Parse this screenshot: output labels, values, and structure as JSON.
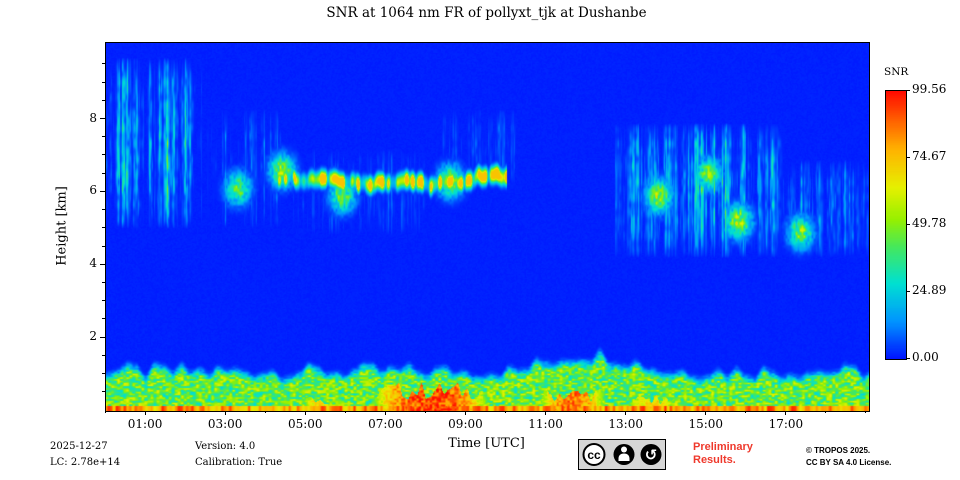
{
  "title": "SNR at 1064 nm FR of pollyxt_tjk at Dushanbe",
  "axes": {
    "xlabel": "Time [UTC]",
    "ylabel": "Height [km]",
    "xticks": [
      {
        "hour": 1,
        "label": "01:00"
      },
      {
        "hour": 3,
        "label": "03:00"
      },
      {
        "hour": 5,
        "label": "05:00"
      },
      {
        "hour": 7,
        "label": "07:00"
      },
      {
        "hour": 9,
        "label": "09:00"
      },
      {
        "hour": 11,
        "label": "11:00"
      },
      {
        "hour": 13,
        "label": "13:00"
      },
      {
        "hour": 15,
        "label": "15:00"
      },
      {
        "hour": 17,
        "label": "17:00"
      }
    ],
    "yticks": [
      {
        "km": 2,
        "label": "2"
      },
      {
        "km": 4,
        "label": "4"
      },
      {
        "km": 6,
        "label": "6"
      },
      {
        "km": 8,
        "label": "8"
      }
    ]
  },
  "colorbar": {
    "title": "SNR",
    "ticks": [
      {
        "value": 99.56,
        "label": "99.56"
      },
      {
        "value": 74.67,
        "label": "74.67"
      },
      {
        "value": 49.78,
        "label": "49.78"
      },
      {
        "value": 24.89,
        "label": "24.89"
      },
      {
        "value": 0,
        "label": "0.00"
      }
    ]
  },
  "footer": {
    "date": "2025-12-27",
    "lc": "LC: 2.78e+14",
    "version": "Version: 4.0",
    "calibration": "Calibration: True",
    "preliminary": "Preliminary Results.",
    "copyright1": "© TROPOS 2025.",
    "copyright2": "CC BY SA 4.0 License.",
    "badge_cc": "cc",
    "badge_sa_glyph": "↺"
  },
  "colors": {
    "preliminary_red": "#ef392c",
    "background_blue": "#0014ff",
    "frame_black": "#000000"
  },
  "chart_data": {
    "type": "heatmap",
    "title": "SNR at 1064 nm FR of pollyxt_tjk at Dushanbe",
    "xlabel": "Time [UTC]",
    "ylabel": "Height [km]",
    "x_hours": 19.05,
    "xlim": [
      "00:00",
      "19:03"
    ],
    "ylim": [
      0,
      10.1
    ],
    "vmin": 0,
    "vmax": 99.56,
    "colorbar_label": "SNR",
    "legend_position": "right",
    "grid": false,
    "colormap_stops": [
      [
        0.0,
        "#0014ff"
      ],
      [
        0.14,
        "#0096ff"
      ],
      [
        0.28,
        "#00e0d2"
      ],
      [
        0.42,
        "#46e85a"
      ],
      [
        0.52,
        "#96f000"
      ],
      [
        0.64,
        "#e6f000"
      ],
      [
        0.78,
        "#ffb400"
      ],
      [
        0.9,
        "#ff5a00"
      ],
      [
        1.0,
        "#ff0a00"
      ]
    ],
    "features": {
      "background_value": 1.6,
      "surface_layer": {
        "top_km": 0.85,
        "base_value": 50,
        "bottom_line_value": 82,
        "hot_spots": [
          {
            "t0": 4.9,
            "t1": 5.7,
            "h_top": 0.3,
            "value": 70
          },
          {
            "t0": 6.6,
            "t1": 9.6,
            "h_top": 0.55,
            "value": 96
          },
          {
            "t0": 10.8,
            "t1": 12.5,
            "h_top": 0.45,
            "value": 88
          },
          {
            "t0": 13.0,
            "t1": 14.3,
            "h_top": 0.3,
            "value": 72
          }
        ]
      },
      "cloud_regions": [
        {
          "t0": 0.0,
          "t1": 2.4,
          "h0": 5.0,
          "h1": 9.7,
          "density": 0.9,
          "value": 34
        },
        {
          "t0": 2.3,
          "t1": 4.5,
          "h0": 5.0,
          "h1": 8.3,
          "density": 0.55,
          "value": 30
        },
        {
          "t0": 4.5,
          "t1": 8.0,
          "h0": 4.8,
          "h1": 7.2,
          "density": 0.35,
          "value": 24
        },
        {
          "t0": 8.2,
          "t1": 10.3,
          "h0": 6.2,
          "h1": 8.3,
          "density": 0.4,
          "value": 22
        },
        {
          "t0": 12.7,
          "t1": 16.9,
          "h0": 4.2,
          "h1": 7.9,
          "density": 0.75,
          "value": 32
        },
        {
          "t0": 16.9,
          "t1": 19.05,
          "h0": 4.2,
          "h1": 6.9,
          "density": 0.6,
          "value": 27
        }
      ],
      "bright_layer": {
        "t0": 4.3,
        "t1": 10.0,
        "h_center": 6.35,
        "thickness": 0.2,
        "value": 62
      },
      "bright_spots": [
        {
          "t": 3.3,
          "h": 6.1,
          "value": 45
        },
        {
          "t": 4.4,
          "h": 6.6,
          "value": 52
        },
        {
          "t": 5.9,
          "h": 5.9,
          "value": 48
        },
        {
          "t": 8.6,
          "h": 6.3,
          "value": 50
        },
        {
          "t": 13.8,
          "h": 5.9,
          "value": 58
        },
        {
          "t": 15.05,
          "h": 6.5,
          "value": 48
        },
        {
          "t": 15.8,
          "h": 5.2,
          "value": 60
        },
        {
          "t": 17.35,
          "h": 4.9,
          "value": 50
        }
      ]
    }
  }
}
